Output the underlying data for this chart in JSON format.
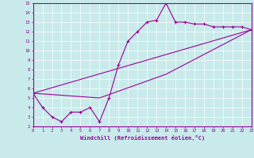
{
  "xlabel": "Windchill (Refroidissement éolien,°C)",
  "bg_color": "#c8eaea",
  "line_color": "#990099",
  "xlim": [
    0,
    23
  ],
  "ylim": [
    2,
    15
  ],
  "xticks": [
    0,
    1,
    2,
    3,
    4,
    5,
    6,
    7,
    8,
    9,
    10,
    11,
    12,
    13,
    14,
    15,
    16,
    17,
    18,
    19,
    20,
    21,
    22,
    23
  ],
  "yticks": [
    2,
    3,
    4,
    5,
    6,
    7,
    8,
    9,
    10,
    11,
    12,
    13,
    14,
    15
  ],
  "curve1_x": [
    0,
    1,
    2,
    3,
    4,
    5,
    6,
    7,
    8,
    9,
    10,
    11,
    12,
    13,
    14,
    15,
    16,
    17,
    18,
    19,
    20,
    21,
    22,
    23
  ],
  "curve1_y": [
    5.5,
    4.0,
    3.0,
    2.5,
    3.5,
    3.5,
    4.0,
    2.5,
    5.0,
    8.5,
    11.0,
    12.0,
    13.0,
    13.2,
    15.0,
    13.0,
    13.0,
    12.8,
    12.8,
    12.5,
    12.5,
    12.5,
    12.5,
    12.2
  ],
  "curve2_x": [
    0,
    23
  ],
  "curve2_y": [
    5.5,
    12.2
  ],
  "curve3_x": [
    0,
    7,
    14,
    23
  ],
  "curve3_y": [
    5.5,
    5.0,
    7.5,
    12.2
  ]
}
